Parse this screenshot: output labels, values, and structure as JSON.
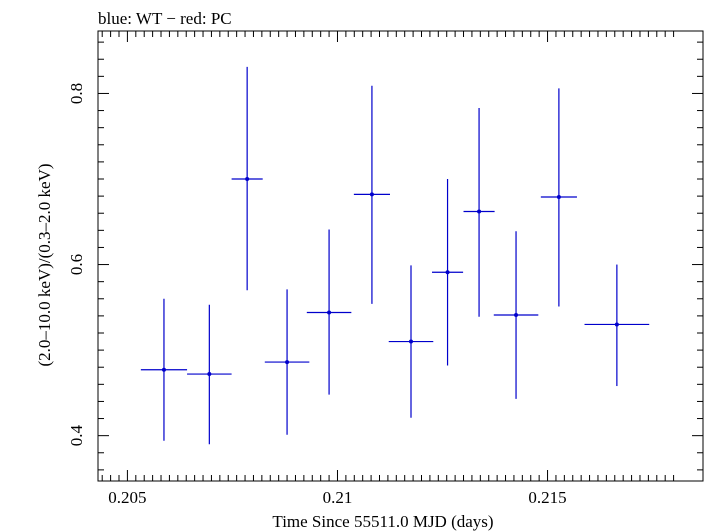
{
  "chart_data": {
    "type": "scatter",
    "title": "blue: WT − red: PC",
    "xlabel": "Time Since 55511.0 MJD (days)",
    "ylabel": "(2.0–10.0 keV)/(0.3–2.0 keV)",
    "xlim": [
      0.2043,
      0.2187
    ],
    "ylim": [
      0.347,
      0.873
    ],
    "x_ticks": [
      0.205,
      0.21,
      0.215
    ],
    "x_tick_labels": [
      "0.205",
      "0.21",
      "0.215"
    ],
    "y_ticks": [
      0.4,
      0.6,
      0.8
    ],
    "y_tick_labels": [
      "0.4",
      "0.6",
      "0.8"
    ],
    "grid": false,
    "series": [
      {
        "color": "#0000cc",
        "points": [
          {
            "x": 0.20587,
            "xerr": 0.00055,
            "y": 0.477,
            "ylo": 0.394,
            "yhi": 0.56
          },
          {
            "x": 0.20695,
            "xerr": 0.00053,
            "y": 0.472,
            "ylo": 0.39,
            "yhi": 0.553
          },
          {
            "x": 0.20785,
            "xerr": 0.00037,
            "y": 0.7,
            "ylo": 0.57,
            "yhi": 0.831
          },
          {
            "x": 0.2088,
            "xerr": 0.00053,
            "y": 0.486,
            "ylo": 0.401,
            "yhi": 0.571
          },
          {
            "x": 0.2098,
            "xerr": 0.00053,
            "y": 0.544,
            "ylo": 0.448,
            "yhi": 0.641
          },
          {
            "x": 0.21082,
            "xerr": 0.00043,
            "y": 0.682,
            "ylo": 0.554,
            "yhi": 0.809
          },
          {
            "x": 0.21175,
            "xerr": 0.00053,
            "y": 0.51,
            "ylo": 0.421,
            "yhi": 0.599
          },
          {
            "x": 0.21262,
            "xerr": 0.00037,
            "y": 0.591,
            "ylo": 0.482,
            "yhi": 0.7
          },
          {
            "x": 0.21337,
            "xerr": 0.00037,
            "y": 0.662,
            "ylo": 0.539,
            "yhi": 0.783
          },
          {
            "x": 0.21425,
            "xerr": 0.00053,
            "y": 0.541,
            "ylo": 0.443,
            "yhi": 0.639
          },
          {
            "x": 0.21527,
            "xerr": 0.00043,
            "y": 0.679,
            "ylo": 0.551,
            "yhi": 0.806
          },
          {
            "x": 0.21665,
            "xerr": 0.00077,
            "y": 0.53,
            "ylo": 0.458,
            "yhi": 0.6
          }
        ]
      }
    ]
  }
}
